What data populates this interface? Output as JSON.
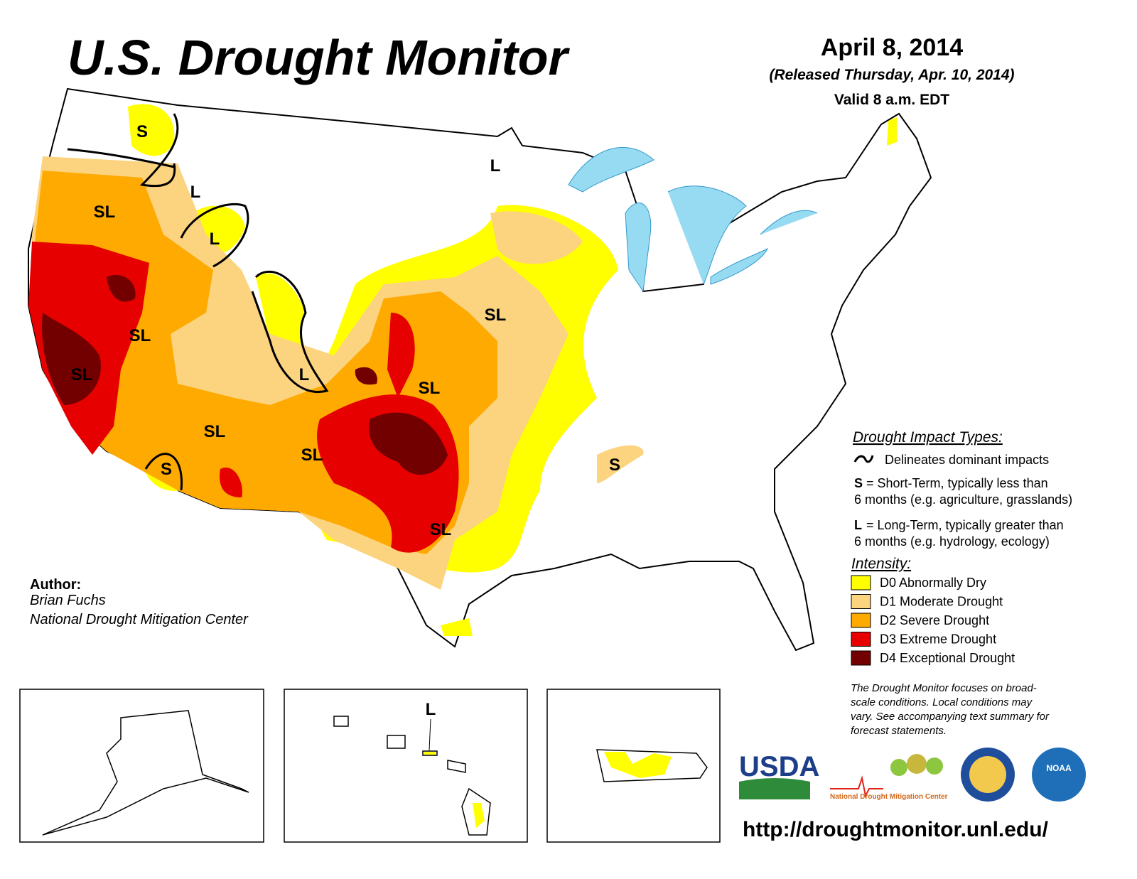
{
  "header": {
    "title": "U.S. Drought Monitor",
    "date": "April 8, 2014",
    "released": "(Released Thursday, Apr. 10, 2014)",
    "valid": "Valid 8 a.m. EDT"
  },
  "map_labels": [
    "S",
    "L",
    "L",
    "SL",
    "L",
    "SL",
    "SL",
    "L",
    "SL",
    "SL",
    "SL",
    "SL",
    "S",
    "S",
    "SL",
    "L"
  ],
  "legend": {
    "impact_title": "Drought Impact Types:",
    "delineates": "Delineates dominant impacts",
    "short_term": {
      "code": "S",
      "lines": [
        "= Short-Term, typically less than",
        "6 months (e.g. agriculture, grasslands)"
      ]
    },
    "long_term": {
      "code": "L",
      "lines": [
        "= Long-Term, typically greater than",
        "6 months (e.g. hydrology, ecology)"
      ]
    },
    "intensity_title": "Intensity:",
    "items": [
      {
        "label": "D0 Abnormally Dry",
        "color": "#ffff00"
      },
      {
        "label": "D1 Moderate Drought",
        "color": "#fcd37f"
      },
      {
        "label": "D2 Severe Drought",
        "color": "#ffaa00"
      },
      {
        "label": "D3 Extreme Drought",
        "color": "#e60000"
      },
      {
        "label": "D4 Exceptional Drought",
        "color": "#730000"
      }
    ]
  },
  "author": {
    "label": "Author:",
    "name": "Brian Fuchs",
    "org": "National Drought Mitigation Center"
  },
  "note": [
    "The Drought Monitor focuses on broad-",
    "scale conditions. Local conditions may",
    "vary. See accompanying text summary for",
    "forecast statements."
  ],
  "logos": {
    "usda": "USDA",
    "ndmc": "National Drought Mitigation Center",
    "noaa": "NOAA"
  },
  "url": "http://droughtmonitor.unl.edu/"
}
